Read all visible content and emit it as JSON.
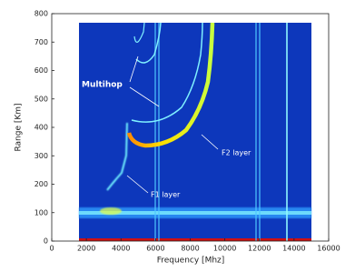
{
  "chart_data": {
    "type": "ionogram",
    "x_label": "Frequency [Mhz]",
    "y_label": "Range [Km]",
    "xlim": [
      0,
      16000
    ],
    "ylim": [
      0,
      800
    ],
    "xticks": [
      0,
      2000,
      4000,
      6000,
      8000,
      10000,
      12000,
      14000,
      16000
    ],
    "yticks": [
      0,
      100,
      200,
      300,
      400,
      500,
      600,
      700,
      800
    ],
    "annotations": [
      "Multihop",
      "F2 layer",
      "F1 layer"
    ]
  }
}
